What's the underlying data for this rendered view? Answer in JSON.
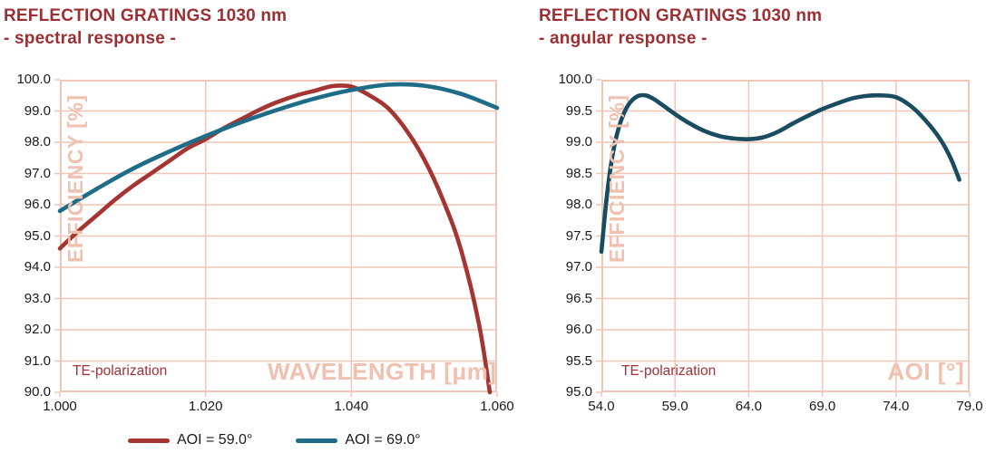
{
  "accent_colors": {
    "title_color": "#9C2F33",
    "tick_color": "#1A1A1A",
    "grid_color": "#F2C6B6",
    "axis_label_color": "#F0C0B0",
    "annotation_color": "#A03238",
    "background": "#FFFFFF"
  },
  "legend": {
    "items": [
      {
        "label": "AOI = 59.0°",
        "color": "#A43531"
      },
      {
        "label": "AOI = 69.0°",
        "color": "#1E6C88"
      }
    ]
  },
  "chart_data": [
    {
      "type": "line",
      "title": "REFLECTION GRATINGS 1030 nm",
      "subtitle": "- spectral response -",
      "xlabel": "WAVELENGTH [μm]",
      "ylabel": "EFFICIENCY [%]",
      "annotation": "TE-polarization",
      "xlim": [
        1.0,
        1.06
      ],
      "ylim": [
        90.0,
        100.0
      ],
      "xtick_labels": [
        "1.000",
        "1.020",
        "1.040",
        "1.060"
      ],
      "ytick_labels": [
        "90.0",
        "91.0",
        "92.0",
        "93.0",
        "94.0",
        "95.0",
        "96.0",
        "97.0",
        "98.0",
        "99.0",
        "100.0"
      ],
      "grid": true,
      "legend_position": "bottom",
      "series": [
        {
          "name": "AOI = 59.0°",
          "color": "#A43531",
          "x": [
            1.0,
            1.0025,
            1.005,
            1.0075,
            1.01,
            1.0125,
            1.015,
            1.0175,
            1.02,
            1.0225,
            1.025,
            1.0275,
            1.03,
            1.0325,
            1.035,
            1.0375,
            1.04,
            1.0425,
            1.045,
            1.0475,
            1.05,
            1.0525,
            1.055,
            1.0575,
            1.059
          ],
          "y": [
            94.6,
            95.15,
            95.65,
            96.15,
            96.6,
            97.0,
            97.4,
            97.8,
            98.1,
            98.45,
            98.75,
            99.05,
            99.3,
            99.5,
            99.65,
            99.8,
            99.78,
            99.5,
            99.1,
            98.4,
            97.45,
            96.2,
            94.6,
            92.2,
            90.0
          ]
        },
        {
          "name": "AOI = 69.0°",
          "color": "#1E6C88",
          "x": [
            1.0,
            1.005,
            1.01,
            1.015,
            1.02,
            1.025,
            1.03,
            1.035,
            1.04,
            1.045,
            1.05,
            1.055,
            1.06
          ],
          "y": [
            95.8,
            96.5,
            97.15,
            97.7,
            98.2,
            98.65,
            99.05,
            99.4,
            99.67,
            99.84,
            99.81,
            99.55,
            99.1
          ]
        }
      ]
    },
    {
      "type": "line",
      "title": "REFLECTION GRATINGS 1030 nm",
      "subtitle": "- angular response -",
      "xlabel": "AOI [°]",
      "ylabel": "EFFICIENCY [%]",
      "annotation": "TE-polarization",
      "xlim": [
        54.0,
        79.0
      ],
      "ylim": [
        95.0,
        100.0
      ],
      "xtick_labels": [
        "54.0",
        "59.0",
        "64.0",
        "69.0",
        "74.0",
        "79.0"
      ],
      "ytick_labels": [
        "95.0",
        "95.5",
        "96.0",
        "96.5",
        "97.0",
        "97.5",
        "98.0",
        "98.5",
        "99.0",
        "99.5",
        "100.0"
      ],
      "grid": true,
      "legend_position": "none",
      "series": [
        {
          "color": "#1A4C61",
          "x": [
            54.0,
            54.4,
            54.8,
            55.2,
            55.6,
            56.0,
            56.5,
            57.0,
            57.5,
            58.0,
            59.0,
            60.0,
            61.0,
            62.0,
            63.0,
            64.0,
            65.0,
            66.0,
            67.0,
            68.0,
            69.0,
            70.0,
            71.0,
            72.0,
            73.0,
            74.0,
            75.0,
            76.0,
            77.0,
            77.7,
            78.3
          ],
          "y": [
            97.25,
            98.2,
            98.85,
            99.25,
            99.5,
            99.65,
            99.74,
            99.75,
            99.7,
            99.62,
            99.45,
            99.3,
            99.18,
            99.1,
            99.06,
            99.05,
            99.08,
            99.17,
            99.3,
            99.42,
            99.53,
            99.62,
            99.7,
            99.74,
            99.75,
            99.72,
            99.58,
            99.35,
            99.05,
            98.75,
            98.4
          ]
        }
      ]
    }
  ]
}
